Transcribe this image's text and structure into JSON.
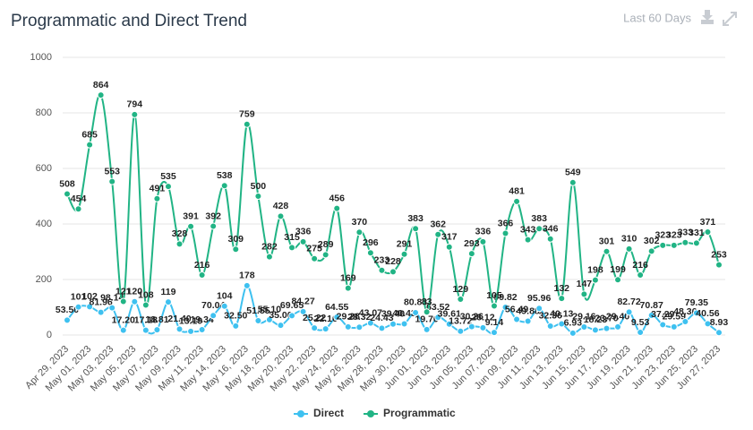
{
  "header": {
    "title": "Programmatic and Direct Trend",
    "range": "Last 60 Days"
  },
  "chart_data": {
    "type": "line",
    "categories": [
      "Apr 29, 2023",
      null,
      "May 01, 2023",
      null,
      "May 03, 2023",
      null,
      "May 05, 2023",
      null,
      "May 07, 2023",
      null,
      "May 09, 2023",
      null,
      "May 11, 2023",
      null,
      "May 14, 2023",
      null,
      "May 16, 2023",
      null,
      "May 18, 2023",
      null,
      "May 20, 2023",
      null,
      "May 22, 2023",
      null,
      "May 24, 2023",
      null,
      "May 26, 2023",
      null,
      "May 28, 2023",
      null,
      "May 30, 2023",
      null,
      "Jun 01, 2023",
      null,
      "Jun 03, 2023",
      null,
      "Jun 05, 2023",
      null,
      "Jun 07, 2023",
      null,
      "Jun 09, 2023",
      null,
      "Jun 11, 2023",
      null,
      "Jun 13, 2023",
      null,
      "Jun 15, 2023",
      null,
      "Jun 17, 2023",
      null,
      "Jun 19, 2023",
      null,
      "Jun 21, 2023",
      null,
      "Jun 23, 2023",
      null,
      "Jun 25, 2023",
      null,
      "Jun 27, 2023"
    ],
    "series": [
      {
        "name": "Direct",
        "color": "#3ec1f0",
        "values": [
          53.5,
          101,
          102,
          81.96,
          98.14,
          17.2,
          120,
          17.18,
          18.81,
          119,
          21.4,
          13.19,
          19.34,
          70.04,
          104,
          32.5,
          178,
          51.55,
          55.1,
          35,
          69.65,
          84.27,
          25.22,
          22.16,
          64.55,
          29.28,
          28.32,
          43.07,
          24.43,
          39.4,
          40.43,
          80.83,
          19.7,
          63.52,
          39.61,
          13.72,
          30.26,
          26.12,
          9.14,
          99.82,
          56.49,
          49.88,
          95.96,
          32.36,
          40.13,
          6.93,
          29.16,
          18.23,
          23.7,
          29.4,
          82.72,
          9.53,
          70.87,
          37.29,
          29.59,
          48.36,
          79.35,
          40.56,
          8.93
        ],
        "value_labels": [
          "53.50",
          "101",
          "102",
          "81.96",
          "98.14",
          "17.20",
          "120",
          "17.18",
          "18.81",
          "119",
          "21.40",
          "13.19",
          "19.34",
          "70.04",
          "104",
          "32.50",
          "178",
          "51.55",
          "55.10",
          "35.00",
          "69.65",
          "84.27",
          "25.22",
          "22.16",
          "64.55",
          "29.28",
          "28.32",
          "43.07",
          "24.43",
          "39.40",
          "40.43",
          "80.83",
          "19.70",
          "63.52",
          "39.61",
          "13.72",
          "30.26",
          "26.12",
          "9.14",
          "99.82",
          "56.49",
          "49.88",
          "95.96",
          "32.36",
          "40.13",
          "6.93",
          "29.16",
          "18.23",
          "23.70",
          "29.40",
          "82.72",
          "9.53",
          "70.87",
          "37.29",
          "29.59",
          "48.36",
          "79.35",
          "40.56",
          "8.93"
        ]
      },
      {
        "name": "Programmatic",
        "color": "#21b485",
        "values": [
          508,
          454,
          685,
          864,
          553,
          121,
          794,
          108,
          491,
          535,
          328,
          391,
          216,
          392,
          538,
          309,
          759,
          500,
          282,
          428,
          315,
          336,
          275,
          289,
          456,
          169,
          370,
          296,
          233,
          228,
          291,
          383,
          83,
          362,
          317,
          129,
          293,
          336,
          105,
          366,
          481,
          343,
          383,
          346,
          132,
          549,
          147,
          198,
          301,
          199,
          310,
          216,
          302,
          323,
          323,
          333,
          331,
          371,
          253
        ]
      }
    ],
    "ylim": [
      0,
      1000
    ],
    "yticks": [
      0,
      200,
      400,
      600,
      800,
      1000
    ],
    "grid": true,
    "legend": "bottom"
  }
}
